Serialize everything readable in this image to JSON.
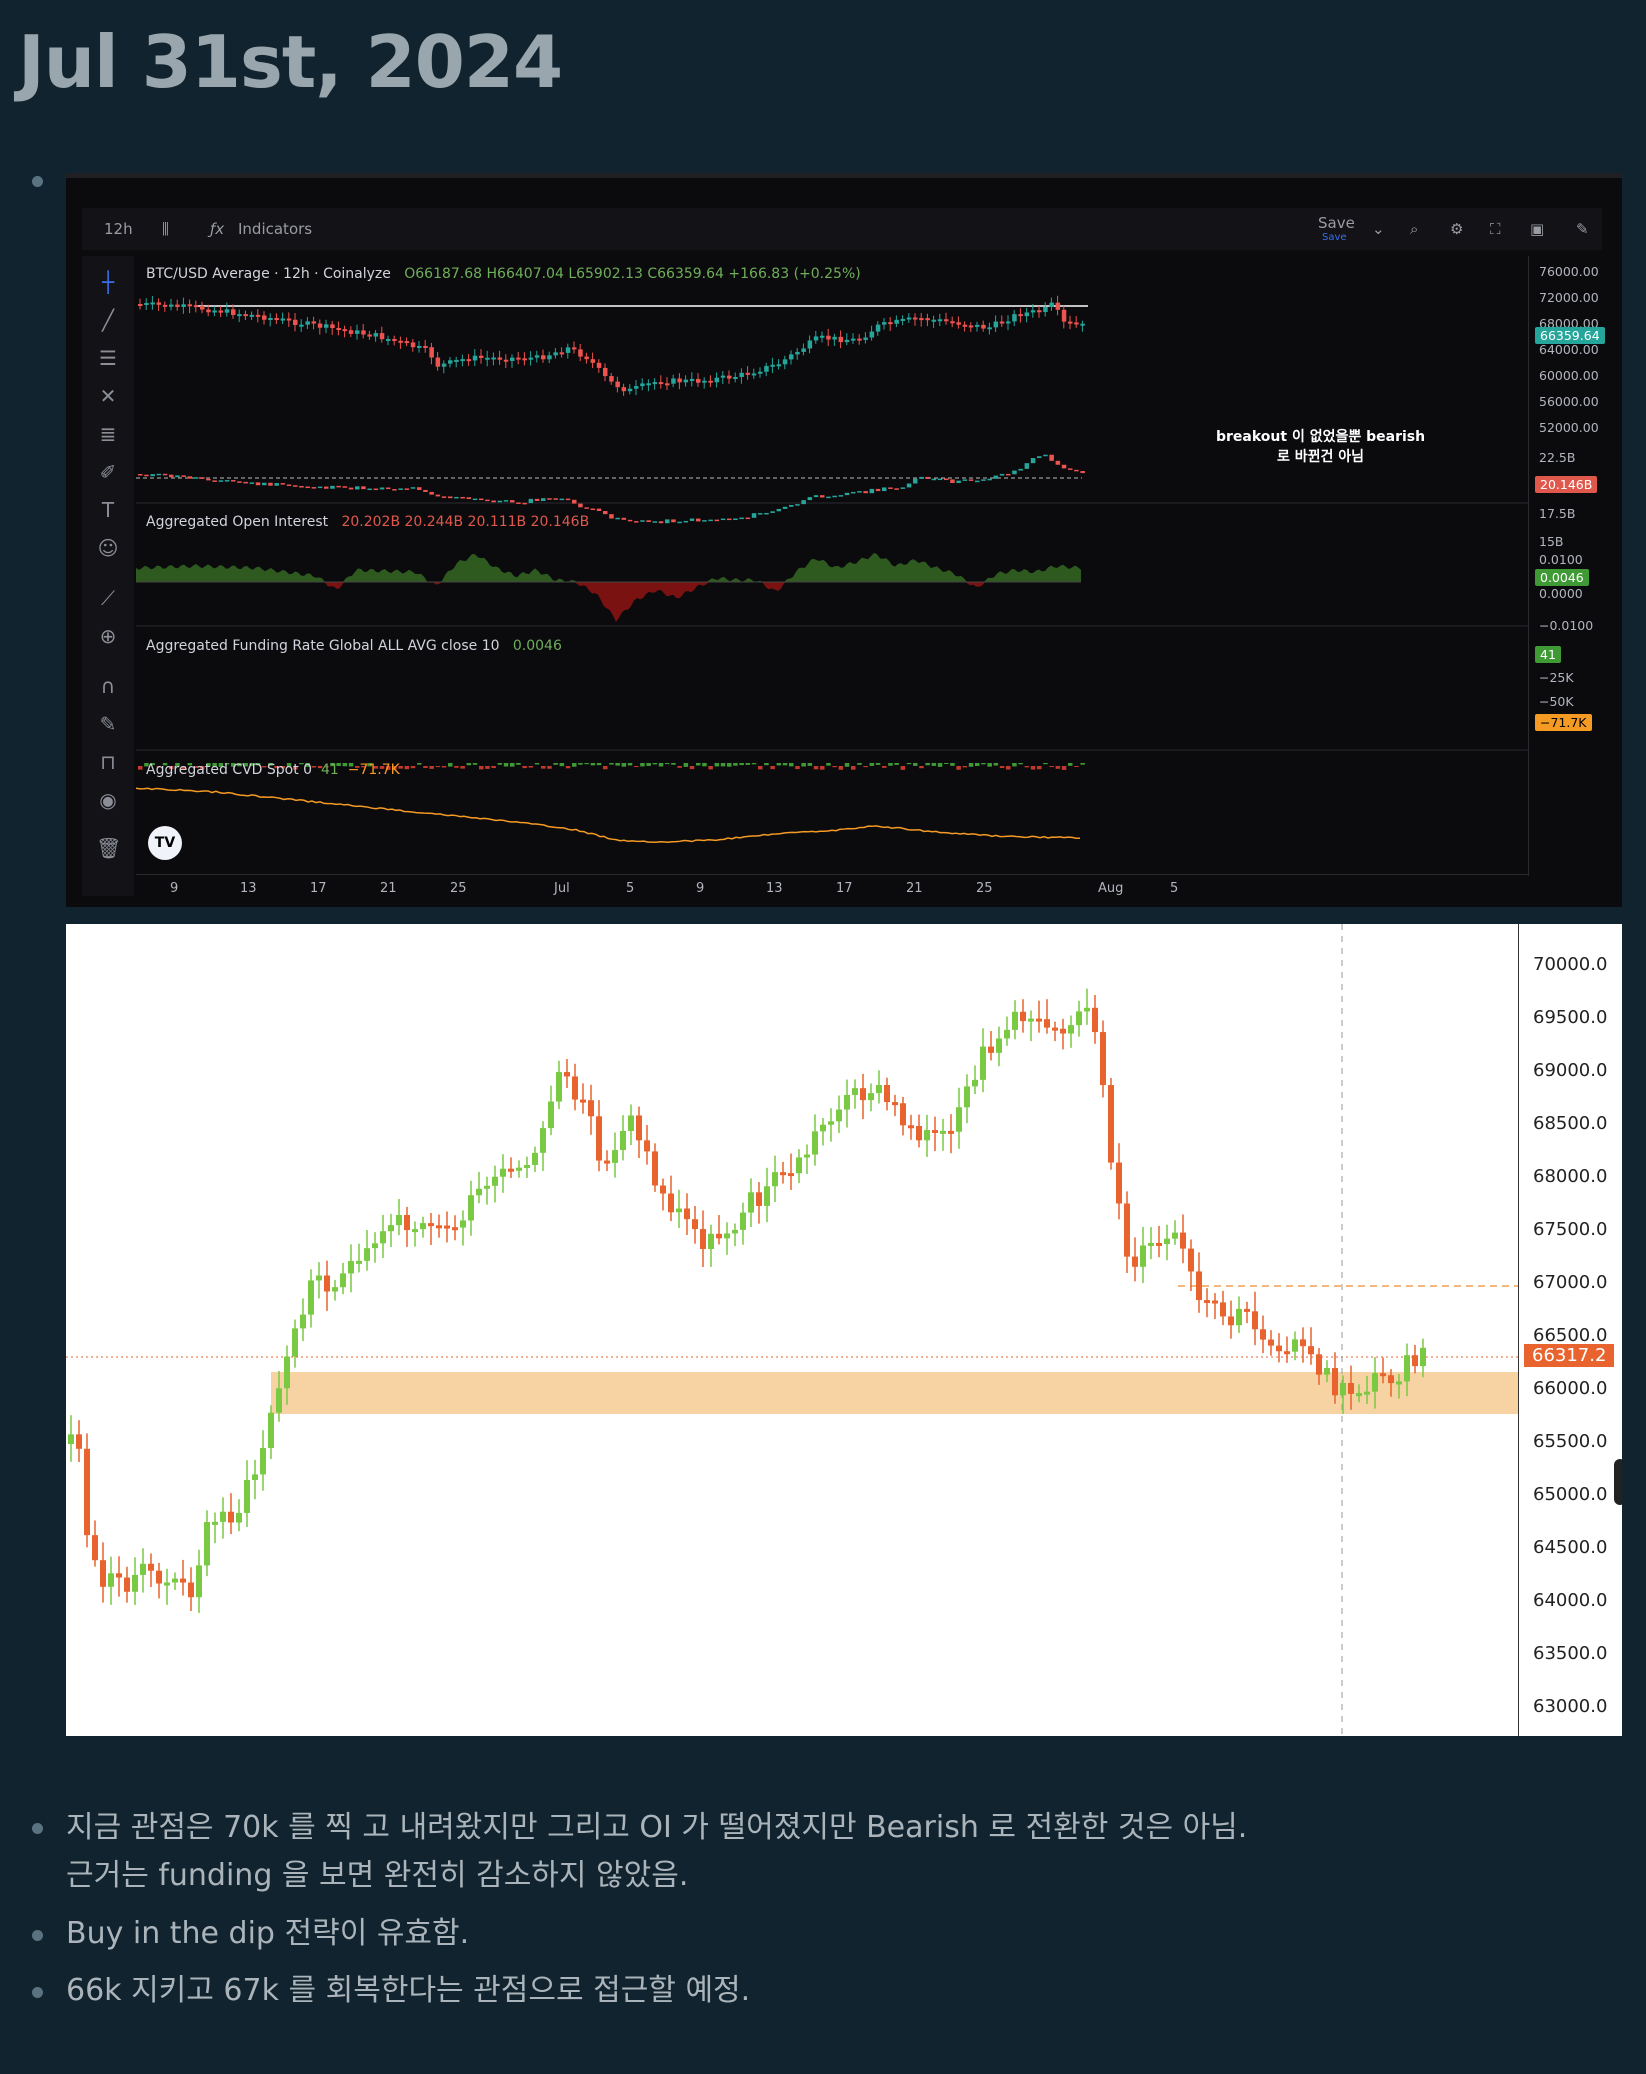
{
  "page": {
    "title": "Jul 31st, 2024"
  },
  "tv": {
    "interval": "12h",
    "indicators_label": "Indicators",
    "save_label": "Save",
    "save_sub": "Save",
    "symbol_legend": "BTC/USD Average · 12h · Coinalyze",
    "ohlc": {
      "o": "O66187.68",
      "h": "H66407.04",
      "l": "L65902.13",
      "c": "C66359.64",
      "chg": "+166.83 (+0.25%)"
    },
    "annotation_line1": "breakout 이 없었을뿐 bearish",
    "annotation_line2": "로 바뀐건 아님",
    "oi_legend": "Aggregated Open Interest",
    "oi_values": "20.202B  20.244B  20.111B  20.146B",
    "fr_legend": "Aggregated Funding Rate Global ALL AVG close 10",
    "fr_value": "0.0046",
    "cvd_legend": "Aggregated CVD Spot 0",
    "cvd_val1": "41",
    "cvd_val2": "−71.7K",
    "price_axis": [
      "76000.00",
      "72000.00",
      "68000.00",
      "64000.00",
      "60000.00",
      "56000.00",
      "52000.00"
    ],
    "price_tag": "66359.64",
    "oi_axis": [
      "22.5B",
      "17.5B",
      "15B"
    ],
    "oi_tag": "20.146B",
    "fr_axis": [
      "0.0100",
      "0.0000",
      "−0.0100"
    ],
    "fr_tag": "0.0046",
    "cvd_axis": [
      "−25K",
      "−50K"
    ],
    "cvd_tag_top": "41",
    "cvd_tag": "−71.7K",
    "time_axis": [
      "9",
      "13",
      "17",
      "21",
      "25",
      "Jul",
      "5",
      "9",
      "13",
      "17",
      "21",
      "25",
      "Aug",
      "5"
    ],
    "colors": {
      "up": "#26a69a",
      "down": "#ef5350",
      "fund_pos": "#2e5a1f",
      "fund_neg": "#7a1212",
      "cvd": "#f59a23"
    }
  },
  "wc": {
    "axis": [
      "70000.0",
      "69500.0",
      "69000.0",
      "68500.0",
      "68000.0",
      "67500.0",
      "67000.0",
      "66500.0",
      "66000.0",
      "65500.0",
      "65000.0",
      "64500.0",
      "64000.0",
      "63500.0",
      "63000.0"
    ],
    "price_tag": "66317.2",
    "colors": {
      "up": "#7ac943",
      "down": "#e8632d",
      "zone": "#f7d3a4"
    }
  },
  "notes": {
    "line1": "지금 관점은 70k 를 찍 고 내려왔지만 그리고 OI 가 떨어졌지만 Bearish 로 전환한 것은 아님.",
    "line1b": "근거는 funding 을 보면 완전히 감소하지 않았음.",
    "line2": "Buy in the dip 전략이 유효함.",
    "line3": "66k 지키고 67k 를 회복한다는 관점으로 접근할 예정."
  }
}
